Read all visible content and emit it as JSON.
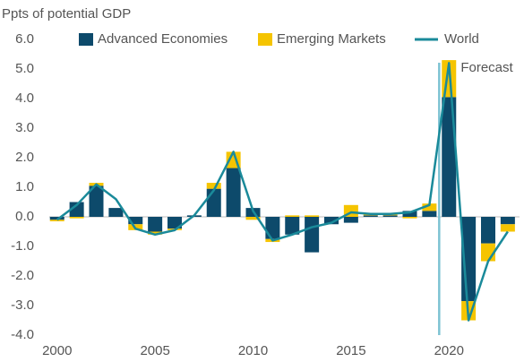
{
  "chart_data": {
    "type": "bar",
    "y_label": "Ppts of potential GDP",
    "x": [
      2000,
      2001,
      2002,
      2003,
      2004,
      2005,
      2006,
      2007,
      2008,
      2009,
      2010,
      2011,
      2012,
      2013,
      2014,
      2015,
      2016,
      2017,
      2018,
      2019,
      2020,
      2021,
      2022,
      2023
    ],
    "series": [
      {
        "name": "Advanced Economies",
        "type": "bar",
        "color": "#0d4a6b",
        "values": [
          -0.1,
          0.5,
          1.05,
          0.3,
          -0.25,
          -0.5,
          -0.4,
          0.05,
          0.95,
          1.65,
          0.3,
          -0.75,
          -0.6,
          -1.2,
          -0.25,
          -0.2,
          0.05,
          0.05,
          0.2,
          0.2,
          4.05,
          -2.85,
          -0.9,
          -0.25
        ]
      },
      {
        "name": "Emerging Markets",
        "type": "bar",
        "color": "#f5c400",
        "values": [
          -0.05,
          -0.05,
          0.1,
          0.0,
          -0.2,
          -0.1,
          -0.05,
          0.0,
          0.2,
          0.55,
          -0.1,
          -0.1,
          0.05,
          0.05,
          0.0,
          0.4,
          0.05,
          0.05,
          -0.05,
          0.25,
          1.25,
          -0.65,
          -0.6,
          -0.25
        ]
      },
      {
        "name": "World",
        "type": "line",
        "color": "#1a8a9a",
        "values": [
          -0.1,
          0.4,
          1.1,
          0.6,
          -0.4,
          -0.6,
          -0.45,
          0.05,
          0.9,
          2.2,
          0.2,
          -0.8,
          -0.6,
          -0.35,
          -0.2,
          0.15,
          0.1,
          0.1,
          0.15,
          0.4,
          5.2,
          -3.5,
          -1.5,
          -0.5
        ]
      }
    ],
    "annotation": {
      "text": "Forecast",
      "x": 2019.5,
      "color": "#7ec3d3"
    },
    "xlim": [
      1999.6,
      2023.6
    ],
    "xticks": [
      2000,
      2005,
      2010,
      2015,
      2020
    ],
    "ylim": [
      -4,
      6
    ],
    "yticks": [
      {
        "value": 6,
        "label": "6.0"
      },
      {
        "value": 5,
        "label": "5.0"
      },
      {
        "value": 4,
        "label": "4.0"
      },
      {
        "value": 3,
        "label": "3.0"
      },
      {
        "value": 2,
        "label": "2.0"
      },
      {
        "value": 1,
        "label": "1.0"
      },
      {
        "value": 0,
        "label": "0.0"
      },
      {
        "value": -1,
        "label": "-1.0"
      },
      {
        "value": -2,
        "label": "-2.0"
      },
      {
        "value": -3,
        "label": "-3.0"
      },
      {
        "value": -4,
        "label": "-4.0"
      }
    ],
    "grid": false
  }
}
